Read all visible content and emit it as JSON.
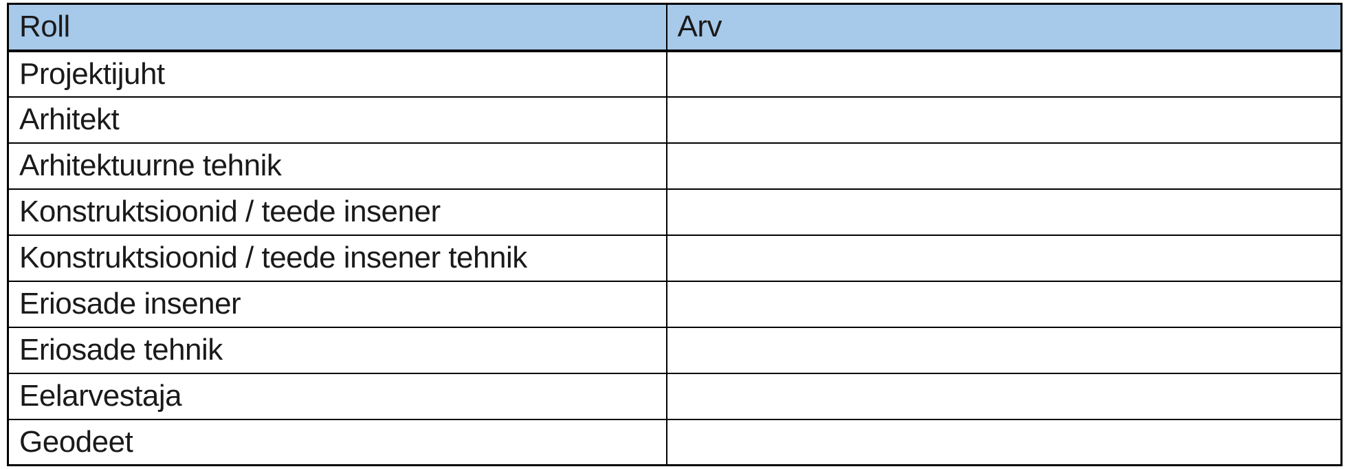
{
  "table": {
    "columns": [
      {
        "label": "Roll"
      },
      {
        "label": "Arv"
      }
    ],
    "rows": [
      {
        "roll": "Projektijuht",
        "arv": ""
      },
      {
        "roll": "Arhitekt",
        "arv": ""
      },
      {
        "roll": "Arhitektuurne tehnik",
        "arv": ""
      },
      {
        "roll": "Konstruktsioonid / teede insener",
        "arv": ""
      },
      {
        "roll": "Konstruktsioonid / teede insener tehnik",
        "arv": ""
      },
      {
        "roll": "Eriosade insener",
        "arv": ""
      },
      {
        "roll": "Eriosade tehnik",
        "arv": ""
      },
      {
        "roll": "Eelarvestaja",
        "arv": ""
      },
      {
        "roll": "Geodeet",
        "arv": ""
      }
    ],
    "colors": {
      "header_bg": "#a7c9ea",
      "border": "#000000"
    }
  }
}
